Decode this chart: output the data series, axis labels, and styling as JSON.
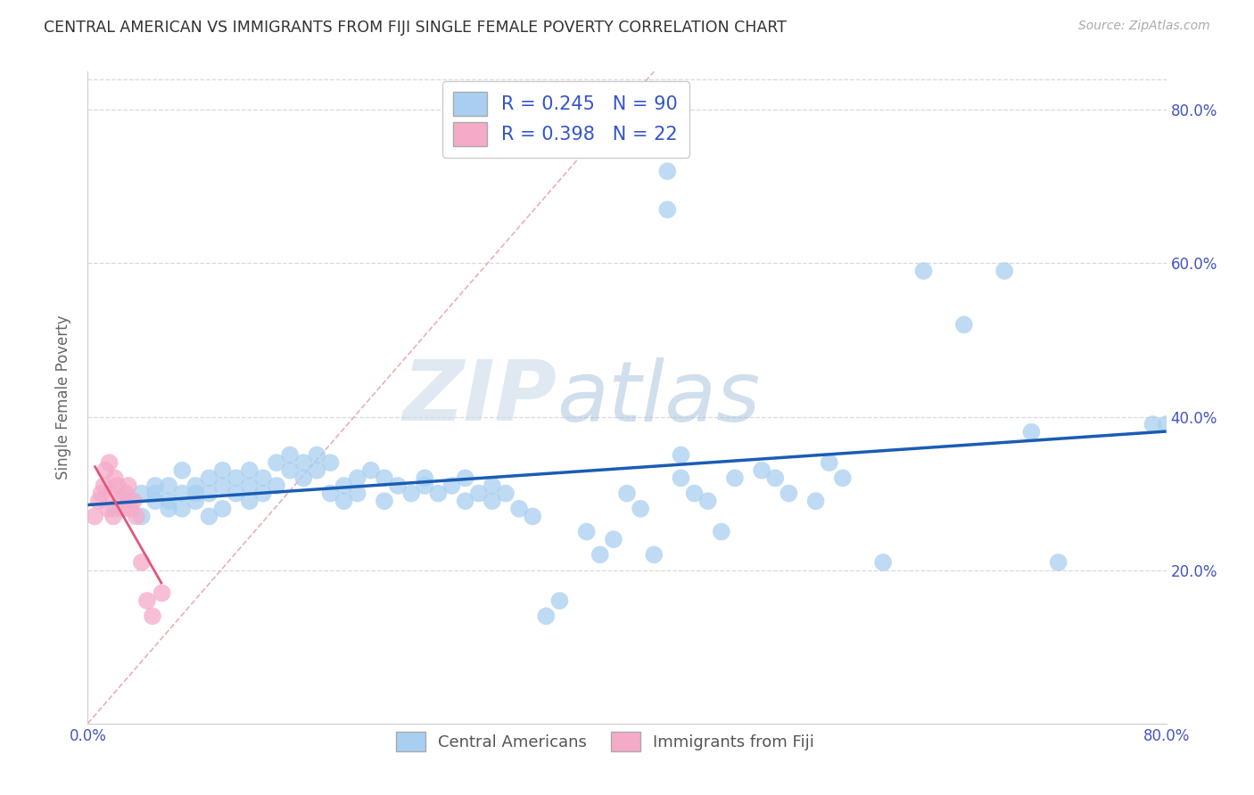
{
  "title": "CENTRAL AMERICAN VS IMMIGRANTS FROM FIJI SINGLE FEMALE POVERTY CORRELATION CHART",
  "source": "Source: ZipAtlas.com",
  "ylabel": "Single Female Poverty",
  "watermark_zip": "ZIP",
  "watermark_atlas": "atlas",
  "xmin": 0.0,
  "xmax": 0.8,
  "ymin": 0.0,
  "ymax": 0.85,
  "central_americans_color": "#a8cff0",
  "fiji_color": "#f5aac8",
  "trendline1_color": "#1a5cb5",
  "trendline2_color": "#e05878",
  "diagonal_color": "#e8c0c8",
  "R1": 0.245,
  "N1": 90,
  "R2": 0.398,
  "N2": 22,
  "ca_x": [
    0.02,
    0.03,
    0.04,
    0.04,
    0.05,
    0.05,
    0.05,
    0.06,
    0.06,
    0.06,
    0.07,
    0.07,
    0.07,
    0.08,
    0.08,
    0.08,
    0.09,
    0.09,
    0.09,
    0.1,
    0.1,
    0.1,
    0.11,
    0.11,
    0.12,
    0.12,
    0.12,
    0.13,
    0.13,
    0.14,
    0.14,
    0.15,
    0.15,
    0.16,
    0.16,
    0.17,
    0.17,
    0.18,
    0.18,
    0.19,
    0.19,
    0.2,
    0.2,
    0.21,
    0.22,
    0.22,
    0.23,
    0.24,
    0.25,
    0.25,
    0.26,
    0.27,
    0.28,
    0.28,
    0.29,
    0.3,
    0.3,
    0.31,
    0.32,
    0.33,
    0.34,
    0.35,
    0.37,
    0.38,
    0.39,
    0.4,
    0.41,
    0.42,
    0.43,
    0.43,
    0.44,
    0.44,
    0.45,
    0.46,
    0.47,
    0.48,
    0.5,
    0.51,
    0.52,
    0.54,
    0.55,
    0.56,
    0.59,
    0.62,
    0.65,
    0.68,
    0.7,
    0.72,
    0.79,
    0.8
  ],
  "ca_y": [
    0.28,
    0.29,
    0.3,
    0.27,
    0.3,
    0.29,
    0.31,
    0.28,
    0.31,
    0.29,
    0.28,
    0.3,
    0.33,
    0.29,
    0.31,
    0.3,
    0.27,
    0.3,
    0.32,
    0.28,
    0.31,
    0.33,
    0.32,
    0.3,
    0.31,
    0.33,
    0.29,
    0.32,
    0.3,
    0.34,
    0.31,
    0.35,
    0.33,
    0.32,
    0.34,
    0.35,
    0.33,
    0.3,
    0.34,
    0.31,
    0.29,
    0.32,
    0.3,
    0.33,
    0.32,
    0.29,
    0.31,
    0.3,
    0.32,
    0.31,
    0.3,
    0.31,
    0.29,
    0.32,
    0.3,
    0.29,
    0.31,
    0.3,
    0.28,
    0.27,
    0.14,
    0.16,
    0.25,
    0.22,
    0.24,
    0.3,
    0.28,
    0.22,
    0.72,
    0.67,
    0.35,
    0.32,
    0.3,
    0.29,
    0.25,
    0.32,
    0.33,
    0.32,
    0.3,
    0.29,
    0.34,
    0.32,
    0.21,
    0.59,
    0.52,
    0.59,
    0.38,
    0.21,
    0.39,
    0.39
  ],
  "fiji_x": [
    0.005,
    0.008,
    0.01,
    0.012,
    0.013,
    0.015,
    0.016,
    0.018,
    0.019,
    0.02,
    0.022,
    0.024,
    0.026,
    0.028,
    0.03,
    0.032,
    0.034,
    0.036,
    0.04,
    0.044,
    0.048,
    0.055
  ],
  "fiji_y": [
    0.27,
    0.29,
    0.3,
    0.31,
    0.33,
    0.28,
    0.34,
    0.3,
    0.27,
    0.32,
    0.31,
    0.29,
    0.28,
    0.3,
    0.31,
    0.28,
    0.29,
    0.27,
    0.21,
    0.16,
    0.14,
    0.17
  ]
}
